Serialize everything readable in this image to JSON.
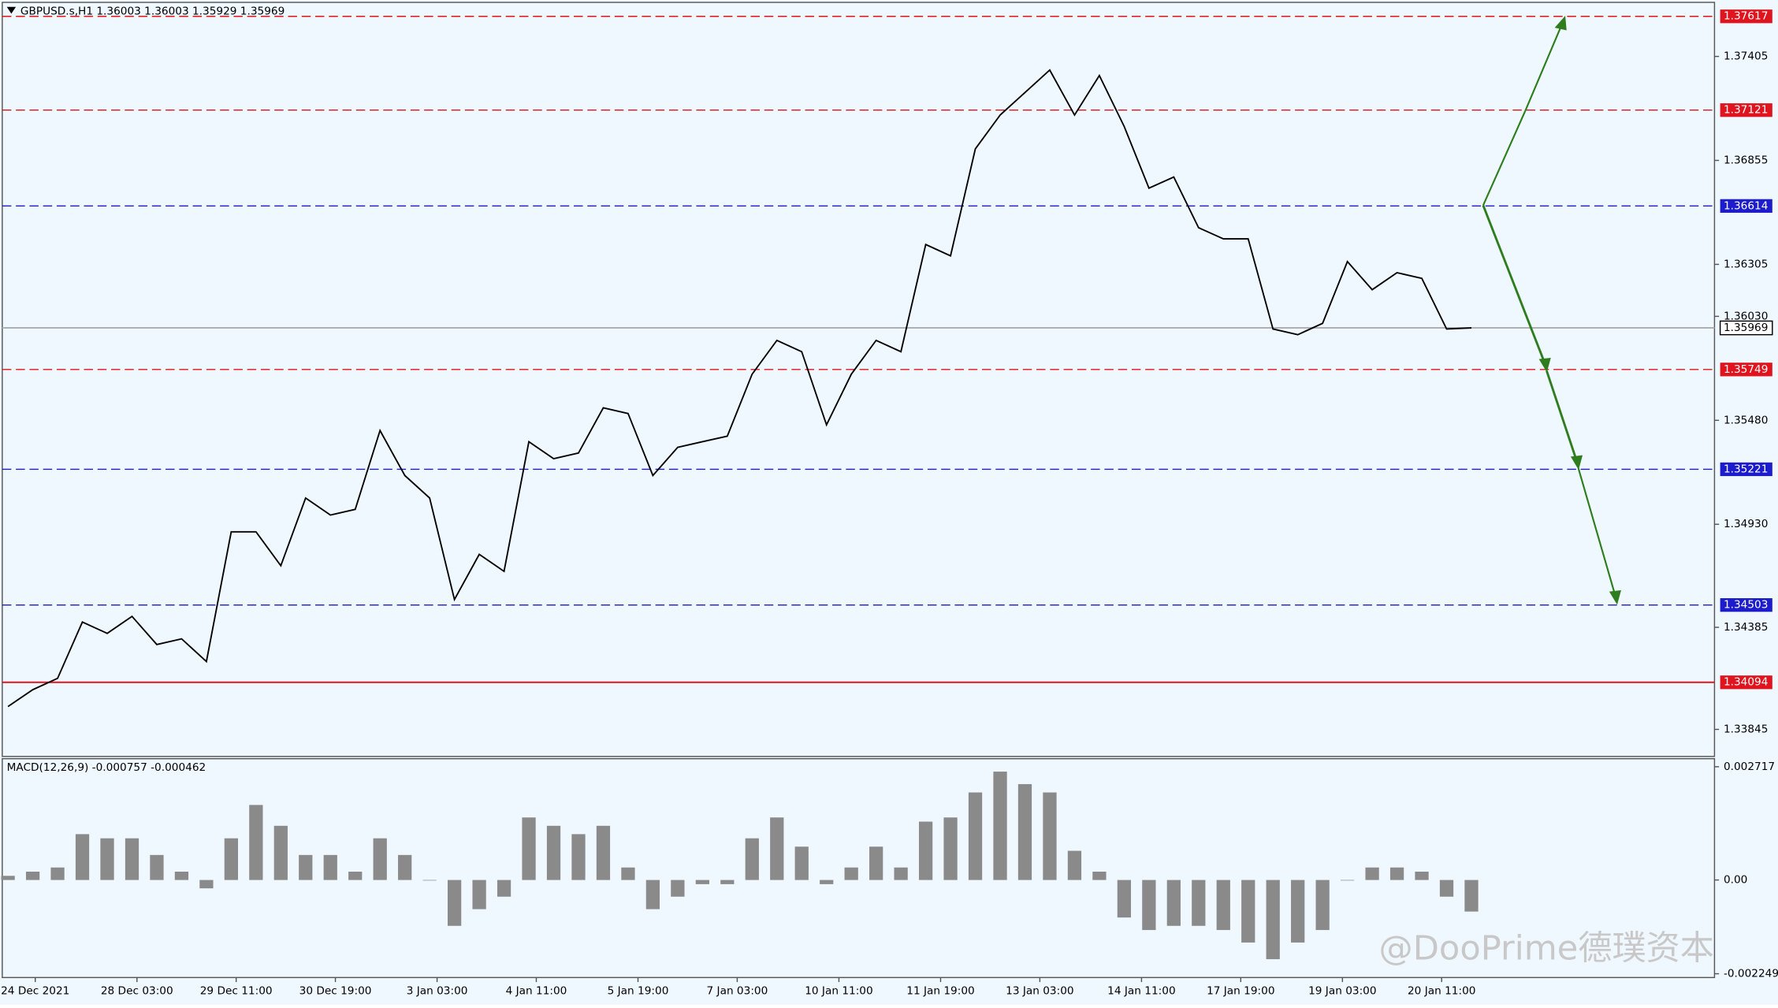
{
  "chart_data": [
    {
      "type": "line",
      "title": "GBPUSD.s,H1  1.36003 1.36003 1.35929 1.35969",
      "xlim": [
        -0.23,
        68.8
      ],
      "ylim": [
        1.33702,
        1.37691
      ],
      "yticks": [
        1.37405,
        1.36855,
        1.36305,
        {
          "value": 1.3603,
          "label": "1.36030"
        },
        {
          "value": 1.3548,
          "label": "1.35480"
        },
        {
          "value": 1.3493,
          "label": "1.34930"
        },
        1.34385,
        1.33845
      ],
      "series": [
        {
          "name": "GBPUSD.s",
          "color": "#000000",
          "values": [
            1.33966,
            1.34055,
            1.34115,
            1.34413,
            1.34353,
            1.34443,
            1.34294,
            1.34324,
            1.34204,
            1.3489,
            1.3489,
            1.34711,
            1.35069,
            1.34979,
            1.35009,
            1.35426,
            1.35188,
            1.35069,
            1.34532,
            1.34771,
            1.34681,
            1.35367,
            1.35277,
            1.35307,
            1.35546,
            1.35516,
            1.35188,
            1.35337,
            1.35367,
            1.35396,
            1.35724,
            1.35903,
            1.35843,
            1.35456,
            1.35724,
            1.35903,
            1.35843,
            1.3641,
            1.3635,
            1.36916,
            1.37095,
            1.37214,
            1.37333,
            1.37095,
            1.37304,
            1.37035,
            1.36708,
            1.36767,
            1.36499,
            1.3644,
            1.3644,
            1.35963,
            1.35933,
            1.35993,
            1.3632,
            1.36171,
            1.36261,
            1.36231,
            1.35963,
            1.35969
          ]
        }
      ],
      "levels": [
        {
          "value": 1.37617,
          "color": "#e0141e",
          "style": "dashed"
        },
        {
          "value": 1.37121,
          "color": "#e0141e",
          "style": "dashed"
        },
        {
          "value": 1.36614,
          "color": "#1c1ccc",
          "style": "dashed"
        },
        {
          "value": 1.35969,
          "color": "#b0b0b0",
          "style": "solid"
        },
        {
          "value": 1.35749,
          "color": "#e0141e",
          "style": "dashed"
        },
        {
          "value": 1.35221,
          "color": "#1c1ccc",
          "style": "dashed"
        },
        {
          "value": 1.34503,
          "color": "#1c1ccc",
          "style": "dashed"
        },
        {
          "value": 1.34094,
          "color": "#e0141e",
          "style": "solid"
        }
      ],
      "watermark": "@DooPrime德璞资本"
    },
    {
      "type": "bar",
      "title": "MACD(12,26,9) -0.000757 -0.000462",
      "xlim": [
        -0.23,
        68.8
      ],
      "ylim": [
        -0.00234,
        0.00291
      ],
      "yticks": [
        0.002717,
        {
          "value": 0,
          "label": "0.00"
        },
        -0.002249
      ],
      "xticks": [
        {
          "value": 1.1,
          "label": "24 Dec 2021"
        },
        {
          "value": 5.2,
          "label": "28 Dec 03:00"
        },
        {
          "value": 9.2,
          "label": "29 Dec 11:00"
        },
        {
          "value": 13.2,
          "label": "30 Dec 19:00"
        },
        {
          "value": 17.3,
          "label": "3 Jan 03:00"
        },
        {
          "value": 21.3,
          "label": "4 Jan 11:00"
        },
        {
          "value": 25.4,
          "label": "5 Jan 19:00"
        },
        {
          "value": 29.4,
          "label": "7 Jan 03:00"
        },
        {
          "value": 33.5,
          "label": "10 Jan 11:00"
        },
        {
          "value": 37.6,
          "label": "11 Jan 19:00"
        },
        {
          "value": 41.6,
          "label": "13 Jan 03:00"
        },
        {
          "value": 45.7,
          "label": "14 Jan 11:00"
        },
        {
          "value": 49.7,
          "label": "17 Jan 19:00"
        },
        {
          "value": 53.8,
          "label": "19 Jan 03:00"
        },
        {
          "value": 57.8,
          "label": "20 Jan 11:00"
        }
      ],
      "series": [
        {
          "name": "MACD",
          "color": "#8a8a8a",
          "values": [
            0.0001,
            0.0002,
            0.0003,
            0.0011,
            0.001,
            0.001,
            0.0006,
            0.0002,
            -0.0002,
            0.001,
            0.0018,
            0.0013,
            0.0006,
            0.0006,
            0.0002,
            0.001,
            0.0006,
            0,
            -0.0011,
            -0.0007,
            -0.0004,
            0.0015,
            0.0013,
            0.0011,
            0.0013,
            0.0003,
            -0.0007,
            -0.0004,
            -0.0001,
            -0.0001,
            0.001,
            0.0015,
            0.0008,
            -0.0001,
            0.0003,
            0.0008,
            0.0003,
            0.0014,
            0.0015,
            0.0021,
            0.0026,
            0.0023,
            0.0021,
            0.0007,
            0.0002,
            -0.0009,
            -0.0012,
            -0.0011,
            -0.0011,
            -0.0012,
            -0.0015,
            -0.0019,
            -0.0015,
            -0.0012,
            0,
            0.0003,
            0.0003,
            0.0002,
            -0.0004,
            -0.000757
          ]
        }
      ]
    }
  ]
}
